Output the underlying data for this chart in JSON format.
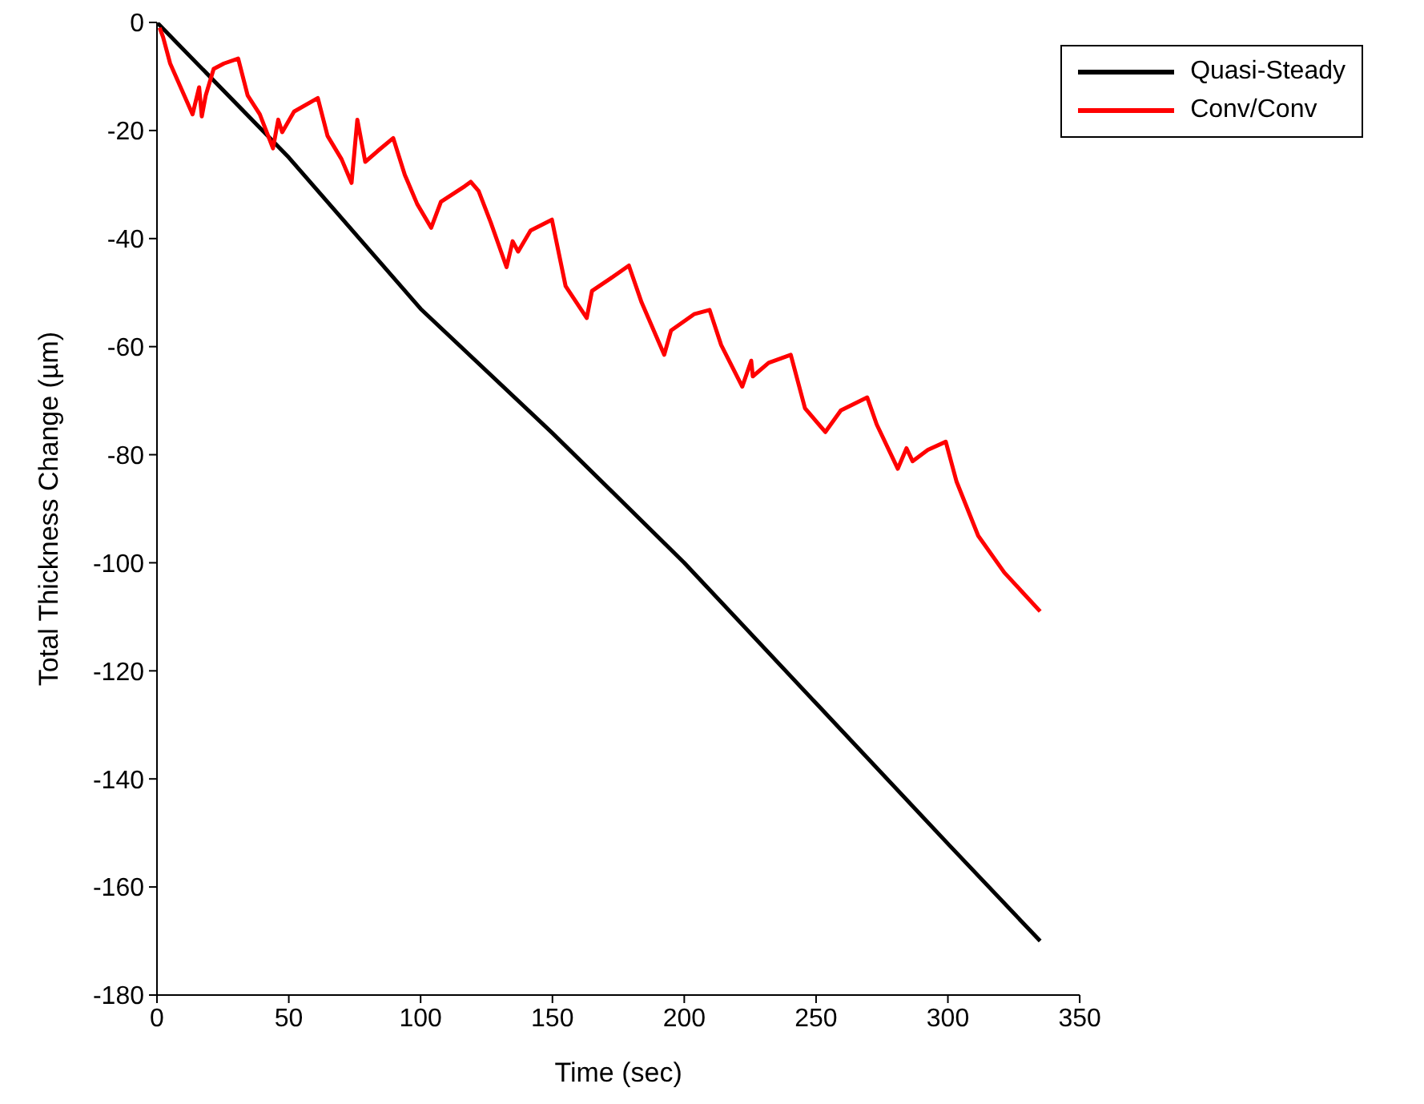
{
  "chart_data": {
    "type": "line",
    "xlabel": "Time (sec)",
    "ylabel": "Total Thickness Change (µm)",
    "xlim": [
      0,
      350
    ],
    "xticks": [
      0,
      50,
      100,
      150,
      200,
      250,
      300,
      350
    ],
    "ylim": [
      -180,
      0
    ],
    "yticks": [
      -180,
      -160,
      -140,
      -120,
      -100,
      -80,
      -60,
      -40,
      -20,
      0
    ],
    "grid": false,
    "legend": "top right",
    "marker": "none",
    "line_style": "solid",
    "series": [
      {
        "name": "Quasi-Steady",
        "color": "#000000",
        "x": [
          0,
          50,
          100,
          150,
          200,
          250,
          300,
          335
        ],
        "values": [
          0,
          -25,
          -53,
          -76,
          -100,
          -126,
          -152,
          -170
        ]
      },
      {
        "name": "Conv/Conv",
        "color": "#ff0000",
        "x": [
          1,
          2.3,
          5,
          13.5,
          16,
          17,
          18.5,
          21.5,
          25.4,
          30.8,
          34.4,
          39,
          44,
          46,
          47.5,
          52,
          61,
          64.7,
          70,
          73.8,
          76,
          79,
          83.7,
          89.6,
          94,
          98.7,
          104,
          107.7,
          116.8,
          119,
          122,
          126.6,
          132.6,
          134.9,
          137,
          141.7,
          149.8,
          155,
          163,
          165,
          172,
          179,
          183.8,
          192.4,
          195,
          203.7,
          209.6,
          214,
          222,
          225.4,
          226,
          232,
          240.4,
          245.8,
          253.5,
          259.4,
          269.4,
          273,
          281,
          284.3,
          286.6,
          292.4,
          299.2,
          303.3,
          311.5,
          321.4,
          335
        ],
        "values": [
          -1,
          -2.7,
          -7.6,
          -17,
          -12,
          -17.4,
          -13.5,
          -8.6,
          -7.6,
          -6.7,
          -13.5,
          -17,
          -23.3,
          -18,
          -20.3,
          -16.5,
          -14,
          -21,
          -25.3,
          -29.7,
          -18,
          -25.8,
          -23.8,
          -21.4,
          -28.2,
          -33.6,
          -38,
          -33.2,
          -30.3,
          -29.5,
          -31.2,
          -37,
          -45.3,
          -40.5,
          -42.4,
          -38.5,
          -36.5,
          -48.8,
          -54.7,
          -49.7,
          -47.4,
          -45,
          -51.8,
          -61.5,
          -57,
          -54,
          -53.2,
          -59.7,
          -67.4,
          -62.6,
          -65.5,
          -63,
          -61.5,
          -71.4,
          -75.8,
          -71.8,
          -69.4,
          -74.4,
          -82.6,
          -78.8,
          -81.2,
          -79.1,
          -77.6,
          -85,
          -95,
          -101.8,
          -109
        ]
      }
    ]
  }
}
